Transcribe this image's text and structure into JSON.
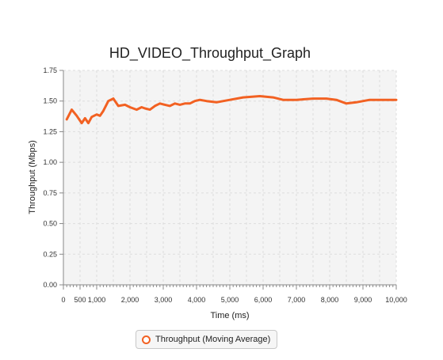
{
  "chart_data": {
    "type": "line",
    "title": "HD_VIDEO_Throughput_Graph",
    "xlabel": "Time (ms)",
    "ylabel": "Throughput (Mbps)",
    "xlim": [
      0,
      10000
    ],
    "ylim": [
      0,
      1.75
    ],
    "xticks": [
      0,
      500,
      1000,
      2000,
      3000,
      4000,
      5000,
      6000,
      7000,
      8000,
      9000,
      10000
    ],
    "xtick_labels": [
      "0",
      "500",
      "1,000",
      "2,000",
      "3,000",
      "4,000",
      "5,000",
      "6,000",
      "7,000",
      "8,000",
      "9,000",
      "10,000"
    ],
    "yticks": [
      0,
      0.25,
      0.5,
      0.75,
      1.0,
      1.25,
      1.5,
      1.75
    ],
    "ytick_labels": [
      "0.00",
      "0.25",
      "0.50",
      "0.75",
      "1.00",
      "1.25",
      "1.50",
      "1.75"
    ],
    "grid": true,
    "legend": "bottom-center",
    "colors": {
      "series": "#f26122",
      "plot_background": "#f4f4f4",
      "grid": "#dddddd"
    },
    "series": [
      {
        "name": "Throughput (Moving Average)",
        "x": [
          100,
          250,
          400,
          550,
          650,
          750,
          850,
          1000,
          1100,
          1200,
          1350,
          1500,
          1650,
          1850,
          2000,
          2200,
          2350,
          2450,
          2600,
          2750,
          2900,
          3050,
          3200,
          3350,
          3500,
          3650,
          3800,
          3950,
          4100,
          4300,
          4600,
          5000,
          5400,
          5900,
          6300,
          6600,
          7000,
          7500,
          7900,
          8200,
          8500,
          8800,
          9200,
          9600,
          10000
        ],
        "y": [
          1.35,
          1.43,
          1.38,
          1.32,
          1.36,
          1.32,
          1.37,
          1.39,
          1.38,
          1.42,
          1.5,
          1.52,
          1.46,
          1.47,
          1.45,
          1.43,
          1.45,
          1.44,
          1.43,
          1.46,
          1.48,
          1.47,
          1.46,
          1.48,
          1.47,
          1.48,
          1.48,
          1.5,
          1.51,
          1.5,
          1.49,
          1.51,
          1.53,
          1.54,
          1.53,
          1.51,
          1.51,
          1.52,
          1.52,
          1.51,
          1.48,
          1.49,
          1.51,
          1.51,
          1.51
        ]
      }
    ]
  }
}
